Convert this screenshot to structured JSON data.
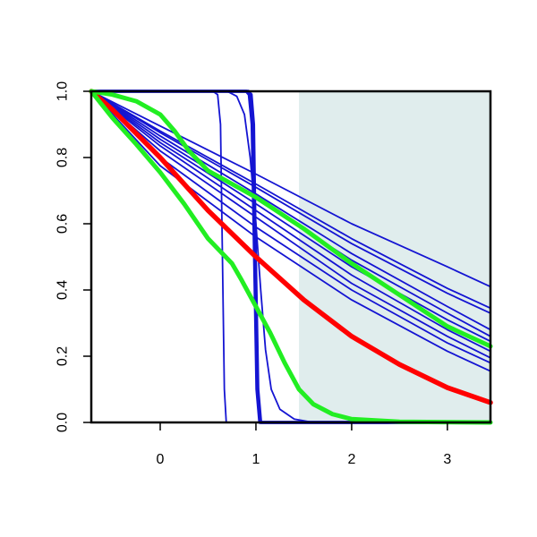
{
  "chart_data": {
    "type": "line",
    "title": "",
    "xlabel": "",
    "ylabel": "",
    "xlim": [
      -0.72,
      3.45
    ],
    "ylim": [
      0,
      1
    ],
    "x_ticks": [
      {
        "value": 0,
        "label": "0"
      },
      {
        "value": 1,
        "label": "1"
      },
      {
        "value": 2,
        "label": "2"
      },
      {
        "value": 3,
        "label": "3"
      }
    ],
    "y_ticks": [
      {
        "value": 0,
        "label": "0.0"
      },
      {
        "value": 0.2,
        "label": "0.2"
      },
      {
        "value": 0.4,
        "label": "0.4"
      },
      {
        "value": 0.6,
        "label": "0.6"
      },
      {
        "value": 0.8,
        "label": "0.8"
      },
      {
        "value": 1,
        "label": "1.0"
      }
    ],
    "grid": false,
    "legend": "none",
    "shaded_region": {
      "x_from": 1.45,
      "x_to": 3.45,
      "color": "#e0eded"
    },
    "series": [
      {
        "color": "#1414d2",
        "width": 1.8,
        "points": [
          [
            -0.72,
            1
          ],
          [
            0,
            0.775
          ],
          [
            1,
            0.56
          ],
          [
            2,
            0.37
          ],
          [
            3,
            0.215
          ],
          [
            3.45,
            0.155
          ]
        ]
      },
      {
        "color": "#1414d2",
        "width": 1.8,
        "points": [
          [
            -0.72,
            1
          ],
          [
            0,
            0.8
          ],
          [
            1,
            0.59
          ],
          [
            2,
            0.4
          ],
          [
            3,
            0.24
          ],
          [
            3.45,
            0.18
          ]
        ]
      },
      {
        "color": "#1414d2",
        "width": 1.8,
        "points": [
          [
            -0.72,
            1
          ],
          [
            0,
            0.82
          ],
          [
            1,
            0.62
          ],
          [
            2,
            0.42
          ],
          [
            3,
            0.26
          ],
          [
            3.45,
            0.195
          ]
        ]
      },
      {
        "color": "#1414d2",
        "width": 1.8,
        "points": [
          [
            -0.72,
            1
          ],
          [
            0,
            0.835
          ],
          [
            1,
            0.64
          ],
          [
            2,
            0.445
          ],
          [
            3,
            0.28
          ],
          [
            3.45,
            0.215
          ]
        ]
      },
      {
        "color": "#1414d2",
        "width": 1.8,
        "points": [
          [
            -0.72,
            1
          ],
          [
            0,
            0.845
          ],
          [
            1,
            0.66
          ],
          [
            2,
            0.47
          ],
          [
            3,
            0.31
          ],
          [
            3.45,
            0.245
          ]
        ]
      },
      {
        "color": "#1414d2",
        "width": 1.8,
        "points": [
          [
            -0.72,
            1
          ],
          [
            0,
            0.855
          ],
          [
            1,
            0.675
          ],
          [
            2,
            0.49
          ],
          [
            3,
            0.33
          ],
          [
            3.45,
            0.26
          ]
        ]
      },
      {
        "color": "#1414d2",
        "width": 1.8,
        "points": [
          [
            -0.72,
            1
          ],
          [
            0,
            0.865
          ],
          [
            1,
            0.69
          ],
          [
            2,
            0.51
          ],
          [
            3,
            0.35
          ],
          [
            3.45,
            0.28
          ]
        ]
      },
      {
        "color": "#1414d2",
        "width": 1.8,
        "points": [
          [
            -0.72,
            1
          ],
          [
            0,
            0.875
          ],
          [
            1,
            0.71
          ],
          [
            2,
            0.54
          ],
          [
            3,
            0.39
          ],
          [
            3.45,
            0.33
          ]
        ]
      },
      {
        "color": "#1414d2",
        "width": 1.8,
        "points": [
          [
            -0.72,
            1
          ],
          [
            0,
            0.88
          ],
          [
            1,
            0.72
          ],
          [
            2,
            0.555
          ],
          [
            3,
            0.405
          ],
          [
            3.45,
            0.345
          ]
        ]
      },
      {
        "color": "#1414d2",
        "width": 1.8,
        "points": [
          [
            -0.72,
            1
          ],
          [
            0,
            0.895
          ],
          [
            1,
            0.75
          ],
          [
            2,
            0.6
          ],
          [
            3,
            0.47
          ],
          [
            3.45,
            0.41
          ]
        ]
      },
      {
        "color": "#1414d2",
        "width": 1.8,
        "points": [
          [
            -0.72,
            1
          ],
          [
            0.55,
            1
          ],
          [
            0.6,
            0.99
          ],
          [
            0.63,
            0.9
          ],
          [
            0.65,
            0.5
          ],
          [
            0.67,
            0.1
          ],
          [
            0.69,
            0
          ],
          [
            3.45,
            0
          ]
        ]
      },
      {
        "color": "#1414d2",
        "width": 3.5,
        "points": [
          [
            -0.72,
            1
          ],
          [
            0.9,
            1
          ],
          [
            0.93,
            0.99
          ],
          [
            0.96,
            0.9
          ],
          [
            0.985,
            0.5
          ],
          [
            1.01,
            0.1
          ],
          [
            1.04,
            0
          ],
          [
            3.45,
            0
          ]
        ]
      },
      {
        "color": "#1414d2",
        "width": 3.5,
        "points": [
          [
            -0.72,
            1
          ],
          [
            0.92,
            1
          ],
          [
            0.95,
            0.99
          ],
          [
            0.975,
            0.9
          ],
          [
            0.995,
            0.5
          ],
          [
            1.02,
            0.1
          ],
          [
            1.05,
            0
          ],
          [
            3.45,
            0
          ]
        ]
      },
      {
        "color": "#1414d2",
        "width": 1.8,
        "points": [
          [
            -0.72,
            1
          ],
          [
            0.7,
            1
          ],
          [
            0.8,
            0.985
          ],
          [
            0.88,
            0.93
          ],
          [
            0.94,
            0.8
          ],
          [
            1.0,
            0.6
          ],
          [
            1.05,
            0.4
          ],
          [
            1.1,
            0.22
          ],
          [
            1.16,
            0.1
          ],
          [
            1.25,
            0.04
          ],
          [
            1.4,
            0.01
          ],
          [
            1.6,
            0
          ],
          [
            3.45,
            0
          ]
        ]
      },
      {
        "color": "#ff0000",
        "width": 5.5,
        "points": [
          [
            -0.72,
            1
          ],
          [
            -0.5,
            0.945
          ],
          [
            0,
            0.8
          ],
          [
            0.5,
            0.64
          ],
          [
            1,
            0.5
          ],
          [
            1.5,
            0.37
          ],
          [
            2,
            0.26
          ],
          [
            2.5,
            0.175
          ],
          [
            3,
            0.105
          ],
          [
            3.45,
            0.06
          ]
        ]
      },
      {
        "color": "#22ee22",
        "width": 5,
        "points": [
          [
            -0.72,
            1
          ],
          [
            -0.5,
            0.92
          ],
          [
            -0.25,
            0.84
          ],
          [
            0,
            0.755
          ],
          [
            0.25,
            0.66
          ],
          [
            0.5,
            0.555
          ],
          [
            0.75,
            0.48
          ],
          [
            0.85,
            0.43
          ],
          [
            1.0,
            0.35
          ],
          [
            1.15,
            0.27
          ],
          [
            1.3,
            0.18
          ],
          [
            1.45,
            0.1
          ],
          [
            1.6,
            0.055
          ],
          [
            1.8,
            0.025
          ],
          [
            2.0,
            0.01
          ],
          [
            2.5,
            0.002
          ],
          [
            3.45,
            0
          ]
        ]
      },
      {
        "color": "#22ee22",
        "width": 5,
        "points": [
          [
            -0.72,
            1
          ],
          [
            -0.5,
            0.99
          ],
          [
            -0.25,
            0.97
          ],
          [
            0,
            0.93
          ],
          [
            0.15,
            0.88
          ],
          [
            0.3,
            0.82
          ],
          [
            0.5,
            0.76
          ],
          [
            0.75,
            0.72
          ],
          [
            1,
            0.68
          ],
          [
            1.5,
            0.585
          ],
          [
            2,
            0.48
          ],
          [
            2.5,
            0.385
          ],
          [
            3,
            0.29
          ],
          [
            3.45,
            0.23
          ]
        ]
      }
    ]
  }
}
